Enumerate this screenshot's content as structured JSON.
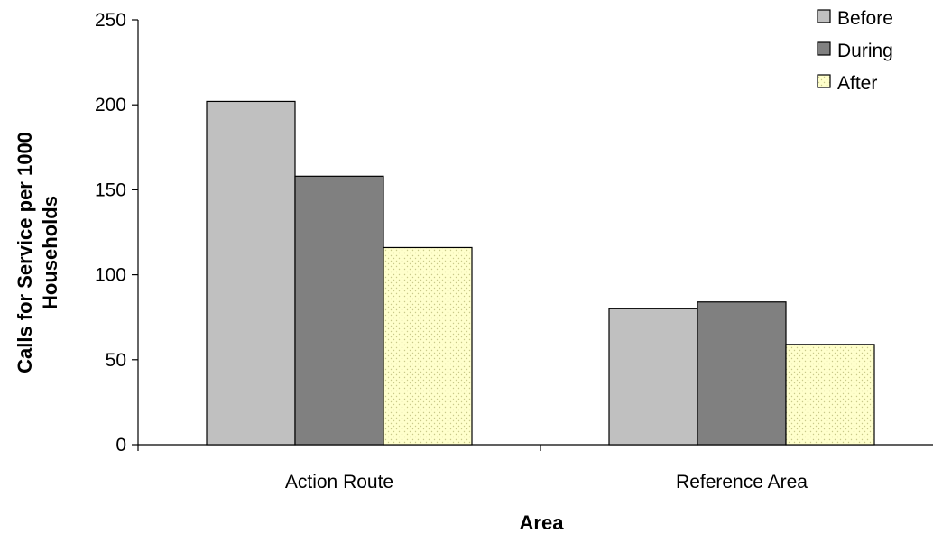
{
  "chart_data": {
    "type": "bar",
    "title": "",
    "xlabel": "Area",
    "ylabel_lines": [
      "Calls for Service per 1000",
      "Households"
    ],
    "categories": [
      "Action Route",
      "Reference Area"
    ],
    "series": [
      {
        "name": "Before",
        "values": [
          202,
          80
        ],
        "color": "#c0c0c0",
        "pattern": "none"
      },
      {
        "name": "During",
        "values": [
          158,
          84
        ],
        "color": "#808080",
        "pattern": "none"
      },
      {
        "name": "After",
        "values": [
          116,
          59
        ],
        "color": "#ffffcc",
        "pattern": "dots"
      }
    ],
    "ylim": [
      0,
      250
    ],
    "yticks": [
      "0",
      "50",
      "100",
      "150",
      "200",
      "250"
    ],
    "grid": false,
    "legend_position": "top-right"
  }
}
